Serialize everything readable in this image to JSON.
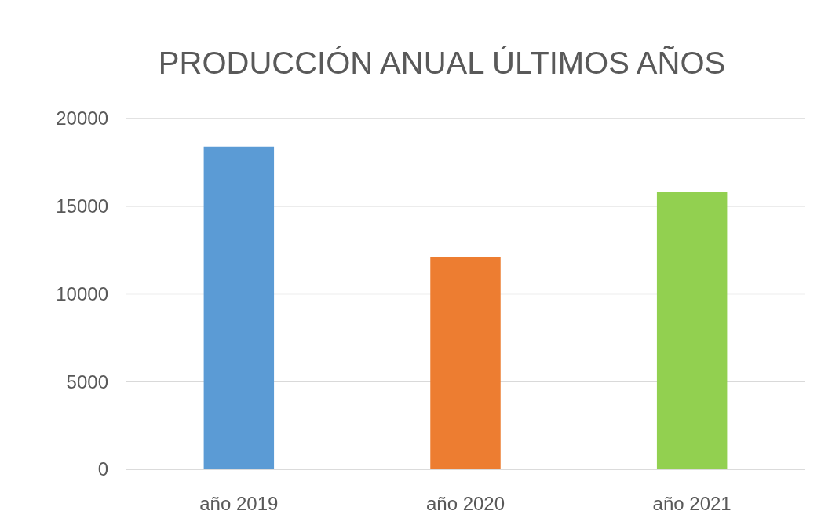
{
  "chart_data": {
    "type": "bar",
    "title": "PRODUCCIÓN ANUAL ÚLTIMOS AÑOS",
    "categories": [
      "año 2019",
      "año 2020",
      "año 2021"
    ],
    "values": [
      18400,
      12100,
      15800
    ],
    "colors": [
      "#5b9bd5",
      "#ed7d31",
      "#92d050"
    ],
    "ylim": [
      0,
      20000
    ],
    "yticks": [
      0,
      5000,
      10000,
      15000,
      20000
    ],
    "grid": "y"
  }
}
